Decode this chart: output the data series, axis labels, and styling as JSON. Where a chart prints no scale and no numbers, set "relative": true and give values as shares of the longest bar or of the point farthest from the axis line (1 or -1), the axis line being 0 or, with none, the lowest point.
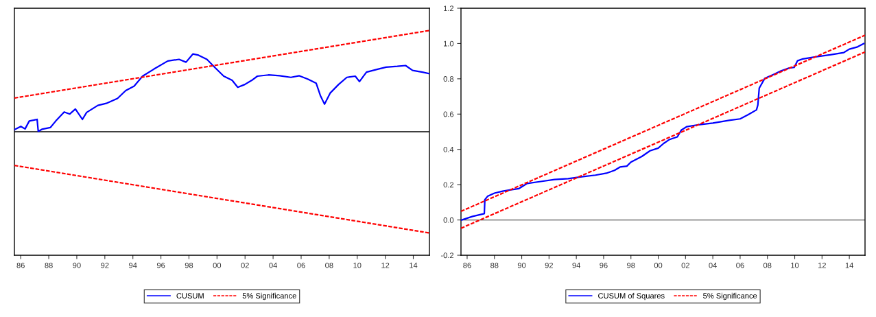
{
  "chart_data": [
    {
      "type": "line",
      "line_style": "solid",
      "legend": "bottom",
      "grid": false,
      "xlim": [
        1985.55,
        2015.15
      ],
      "xticks": [
        {
          "value": 1986,
          "label": "86"
        },
        {
          "value": 1988,
          "label": "88"
        },
        {
          "value": 1990,
          "label": "90"
        },
        {
          "value": 1992,
          "label": "92"
        },
        {
          "value": 1994,
          "label": "94"
        },
        {
          "value": 1996,
          "label": "96"
        },
        {
          "value": 1998,
          "label": "98"
        },
        {
          "value": 2000,
          "label": "00"
        },
        {
          "value": 2002,
          "label": "02"
        },
        {
          "value": 2004,
          "label": "04"
        },
        {
          "value": 2006,
          "label": "06"
        },
        {
          "value": 2008,
          "label": "08"
        },
        {
          "value": 2010,
          "label": "10"
        },
        {
          "value": 2012,
          "label": "12"
        },
        {
          "value": 2014,
          "label": "14"
        }
      ],
      "relative": true,
      "ref_lines": [
        {
          "axis": "y",
          "value": 0,
          "color": "#000000"
        }
      ],
      "series": [
        {
          "name": "CUSUM",
          "color": "#0000ff",
          "x": [
            1985.55,
            1986.01,
            1986.31,
            1986.61,
            1986.91,
            1987.17,
            1987.25,
            1987.51,
            1988.11,
            1988.5,
            1989.1,
            1989.5,
            1989.9,
            1990.4,
            1990.7,
            1991.5,
            1992.1,
            1992.9,
            1993.49,
            1994.09,
            1994.69,
            1995.49,
            1996.49,
            1997.29,
            1997.79,
            1998.28,
            1998.68,
            1999.28,
            1999.88,
            2000.48,
            2001.08,
            2001.48,
            2001.98,
            2002.48,
            2002.88,
            2003.67,
            2004.47,
            2005.27,
            2005.87,
            2006.47,
            2007.07,
            2007.37,
            2007.67,
            2008.07,
            2008.67,
            2009.26,
            2009.86,
            2010.16,
            2010.66,
            2011.46,
            2012.06,
            2012.86,
            2013.45,
            2013.95,
            2014.65,
            2015.15
          ],
          "values": [
            0.02,
            0.053,
            0.028,
            0.106,
            0.114,
            0.122,
            0.004,
            0.024,
            0.041,
            0.106,
            0.195,
            0.175,
            0.224,
            0.122,
            0.191,
            0.26,
            0.28,
            0.329,
            0.407,
            0.451,
            0.549,
            0.618,
            0.699,
            0.715,
            0.687,
            0.768,
            0.756,
            0.715,
            0.63,
            0.549,
            0.508,
            0.439,
            0.467,
            0.508,
            0.549,
            0.561,
            0.553,
            0.537,
            0.553,
            0.52,
            0.48,
            0.358,
            0.272,
            0.382,
            0.467,
            0.537,
            0.549,
            0.496,
            0.589,
            0.618,
            0.638,
            0.646,
            0.654,
            0.606,
            0.589,
            0.573
          ]
        },
        {
          "name": "5% Significance",
          "color": "#ff0000",
          "line_style": "dashed",
          "x": [
            1985.55,
            2015.15
          ],
          "values": [
            0.333,
            1
          ]
        },
        {
          "color": "#ff0000",
          "line_style": "dashed",
          "x": [
            1985.55,
            2015.15
          ],
          "values": [
            -0.333,
            -1
          ]
        }
      ]
    },
    {
      "type": "line",
      "line_style": "solid",
      "legend": "bottom",
      "grid": false,
      "xlim": [
        1985.55,
        2015.15
      ],
      "xticks": [
        {
          "value": 1986,
          "label": "86"
        },
        {
          "value": 1988,
          "label": "88"
        },
        {
          "value": 1990,
          "label": "90"
        },
        {
          "value": 1992,
          "label": "92"
        },
        {
          "value": 1994,
          "label": "94"
        },
        {
          "value": 1996,
          "label": "96"
        },
        {
          "value": 1998,
          "label": "98"
        },
        {
          "value": 2000,
          "label": "00"
        },
        {
          "value": 2002,
          "label": "02"
        },
        {
          "value": 2004,
          "label": "04"
        },
        {
          "value": 2006,
          "label": "06"
        },
        {
          "value": 2008,
          "label": "08"
        },
        {
          "value": 2010,
          "label": "10"
        },
        {
          "value": 2012,
          "label": "12"
        },
        {
          "value": 2014,
          "label": "14"
        }
      ],
      "ylim": [
        -0.2,
        1.2
      ],
      "yticks": [
        -0.2,
        {
          "value": 0,
          "label": "0.0"
        },
        0.2,
        0.4,
        0.6,
        0.8,
        {
          "value": 1,
          "label": "1.0"
        },
        1.2
      ],
      "ref_lines": [
        {
          "axis": "y",
          "value": 0,
          "color": "#555555"
        }
      ],
      "series": [
        {
          "name": "CUSUM of Squares",
          "color": "#0000ff",
          "x": [
            1985.6,
            1986.4,
            1987.26,
            1987.3,
            1987.5,
            1988.0,
            1988.6,
            1989.2,
            1989.8,
            1990.4,
            1991.4,
            1992.4,
            1993.4,
            1994.4,
            1995.4,
            1996.2,
            1996.8,
            1997.2,
            1997.7,
            1998.0,
            1998.8,
            1999.4,
            2000.0,
            2000.4,
            2000.8,
            2001.4,
            2001.7,
            2002.1,
            2002.8,
            2004.0,
            2005.2,
            2006.0,
            2006.6,
            2007.2,
            2007.3,
            2007.4,
            2007.8,
            2008.4,
            2009.0,
            2009.6,
            2009.96,
            2010.2,
            2010.6,
            2011.6,
            2012.6,
            2013.6,
            2014.0,
            2014.6,
            2015.06
          ],
          "values": [
            0.0,
            0.02,
            0.036,
            0.115,
            0.134,
            0.152,
            0.163,
            0.171,
            0.178,
            0.207,
            0.218,
            0.229,
            0.234,
            0.245,
            0.254,
            0.265,
            0.281,
            0.3,
            0.305,
            0.328,
            0.36,
            0.392,
            0.407,
            0.434,
            0.455,
            0.471,
            0.51,
            0.529,
            0.538,
            0.549,
            0.565,
            0.573,
            0.597,
            0.624,
            0.652,
            0.747,
            0.802,
            0.823,
            0.845,
            0.861,
            0.865,
            0.902,
            0.913,
            0.925,
            0.936,
            0.949,
            0.968,
            0.981,
            1.0
          ]
        },
        {
          "name": "5% Significance",
          "color": "#ff0000",
          "line_style": "dashed",
          "x": [
            1985.55,
            2015.15
          ],
          "values": [
            0.049,
            1.047
          ]
        },
        {
          "color": "#ff0000",
          "line_style": "dashed",
          "x": [
            1985.55,
            2015.15
          ],
          "values": [
            -0.047,
            0.952
          ]
        }
      ]
    }
  ]
}
